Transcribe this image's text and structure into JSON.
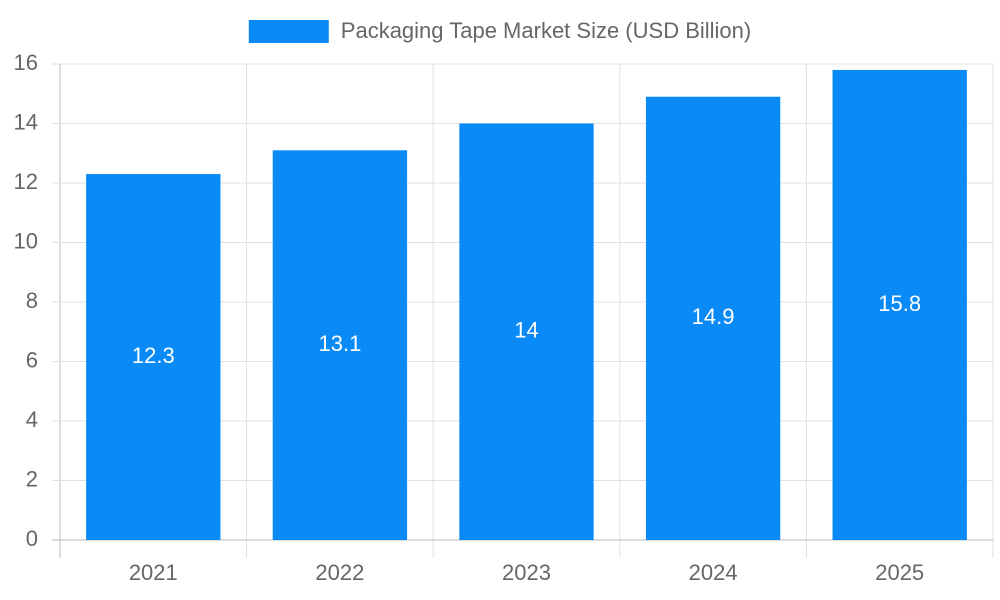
{
  "chart_data": {
    "type": "bar",
    "categories": [
      "2021",
      "2022",
      "2023",
      "2024",
      "2025"
    ],
    "series": [
      {
        "name": "Packaging Tape Market Size (USD Billion)",
        "color": "#0a8af7",
        "values": [
          12.3,
          13.1,
          14,
          14.9,
          15.8
        ]
      }
    ],
    "ylim": [
      0,
      16
    ],
    "yticks": [
      0,
      2,
      4,
      6,
      8,
      10,
      12,
      14,
      16
    ],
    "grid": true,
    "legend": "top"
  }
}
